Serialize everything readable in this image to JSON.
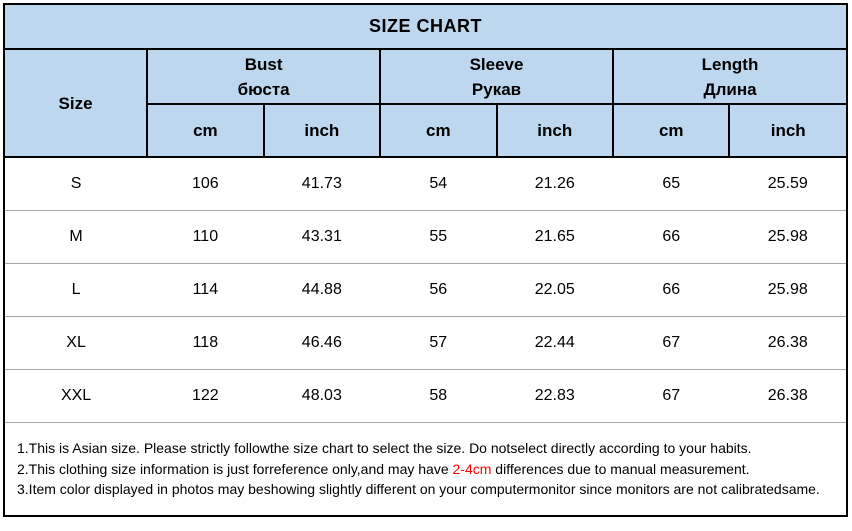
{
  "title": "SIZE CHART",
  "header": {
    "size_label": "Size",
    "groups": [
      {
        "en": "Bust",
        "ru": "бюста"
      },
      {
        "en": "Sleeve",
        "ru": "Рукав"
      },
      {
        "en": "Length",
        "ru": "Длина"
      }
    ],
    "units": [
      "cm",
      "inch"
    ]
  },
  "chart_data": {
    "type": "table",
    "title": "SIZE CHART",
    "columns": [
      "Size",
      "Bust cm",
      "Bust inch",
      "Sleeve cm",
      "Sleeve inch",
      "Length cm",
      "Length inch"
    ],
    "rows": [
      [
        "S",
        106,
        41.73,
        54,
        21.26,
        65,
        25.59
      ],
      [
        "M",
        110,
        43.31,
        55,
        21.65,
        66,
        25.98
      ],
      [
        "L",
        114,
        44.88,
        56,
        22.05,
        66,
        25.98
      ],
      [
        "XL",
        118,
        46.46,
        57,
        22.44,
        67,
        26.38
      ],
      [
        "XXL",
        122,
        48.03,
        58,
        22.83,
        67,
        26.38
      ]
    ]
  },
  "notes": [
    {
      "text": "1.This is Asian size. Please strictly followthe size chart to select the size. Do notselect directly according to your habits.",
      "highlight": "",
      "suffix": ""
    },
    {
      "text": "2.This clothing size information is just forreference only,and may have ",
      "highlight": "2-4cm",
      "suffix": " differences due to manual measurement."
    },
    {
      "text": "3.Item color displayed in photos may beshowing slightly different on your computermonitor since monitors are not calibratedsame.",
      "highlight": "",
      "suffix": ""
    }
  ],
  "colors": {
    "header_bg": "#BDD7EE",
    "border": "#000000",
    "row_line": "#A6A6A6",
    "note_highlight": "#FF0000"
  }
}
